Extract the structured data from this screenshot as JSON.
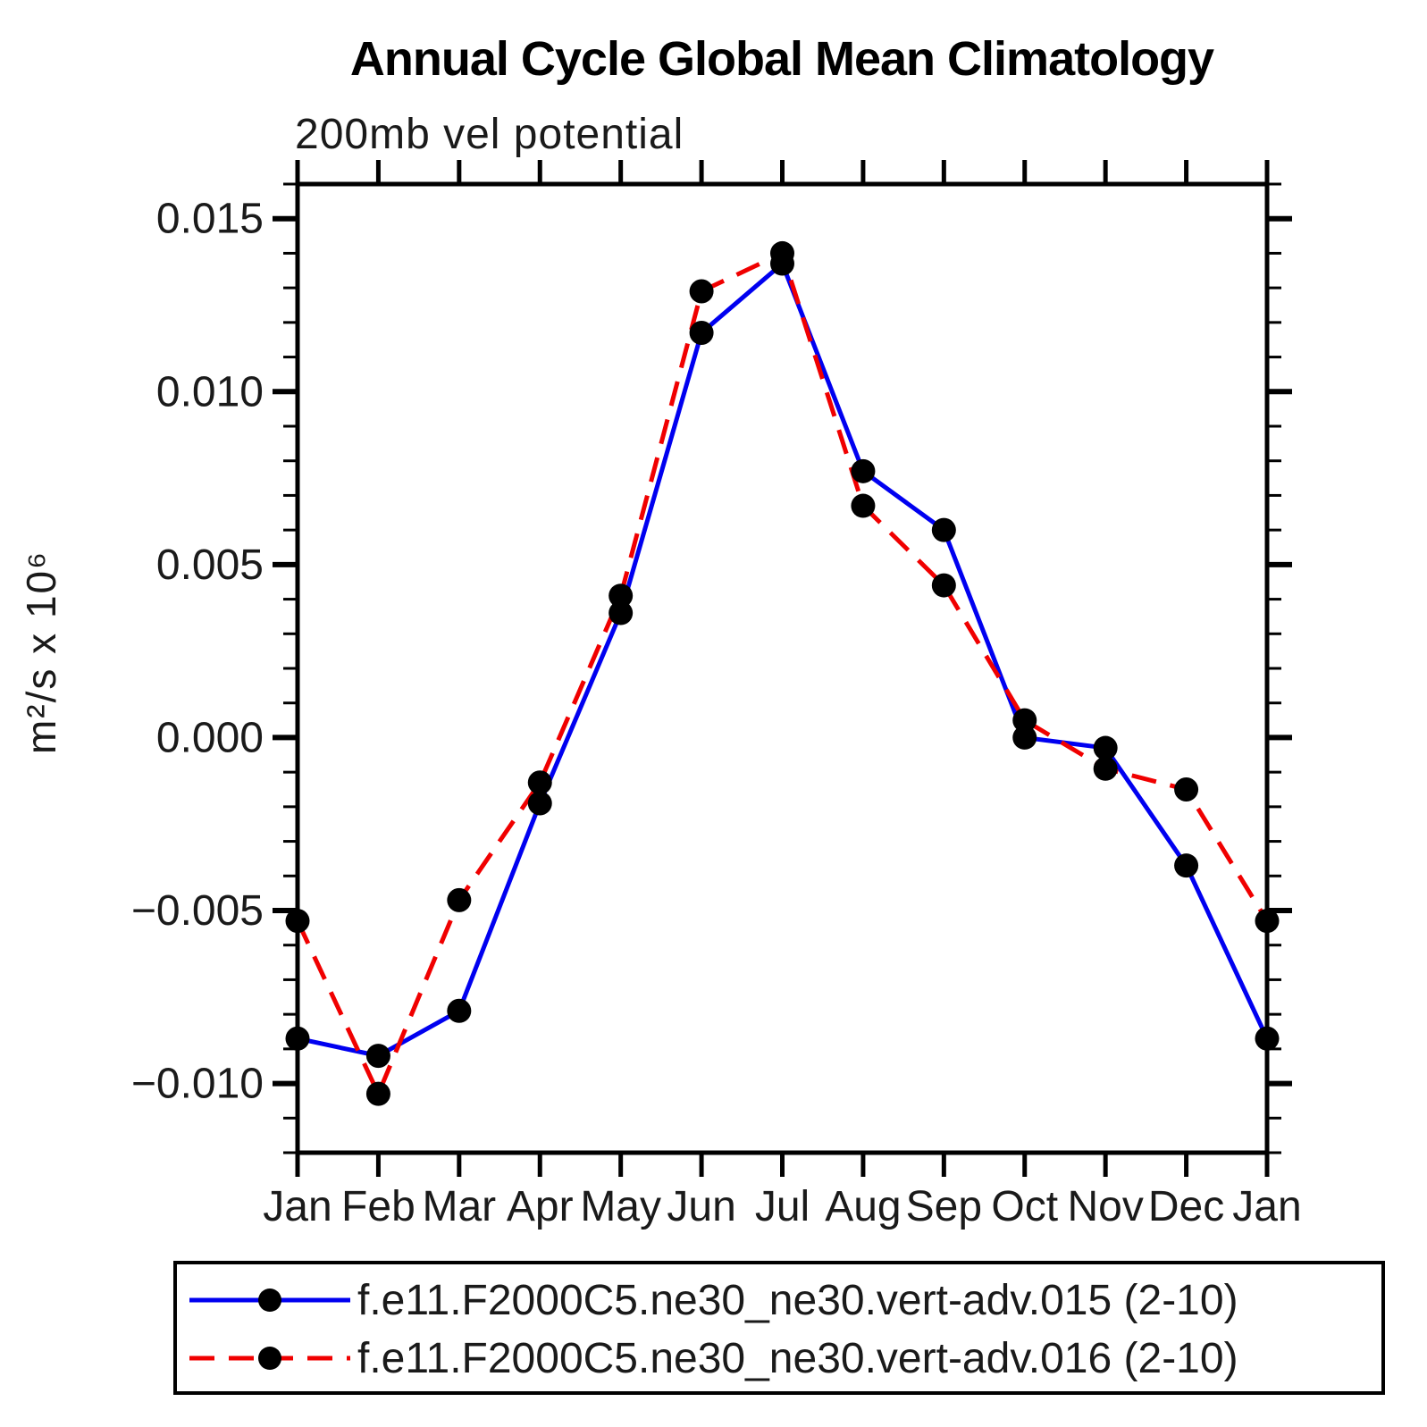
{
  "chart_data": {
    "type": "line",
    "title": "Annual Cycle Global Mean Climatology",
    "subtitle": "200mb vel potential",
    "ylabel": "m²/s x 10⁶",
    "categories": [
      "Jan",
      "Feb",
      "Mar",
      "Apr",
      "May",
      "Jun",
      "Jul",
      "Aug",
      "Sep",
      "Oct",
      "Nov",
      "Dec",
      "Jan"
    ],
    "series": [
      {
        "name": "f.e11.F2000C5.ne30_ne30.vert-adv.015 (2-10)",
        "color": "#0000f0",
        "style": "solid",
        "marker": "filled-circle",
        "values": [
          -0.0087,
          -0.0092,
          -0.0079,
          -0.0019,
          0.0036,
          0.0117,
          0.0137,
          0.0077,
          0.006,
          0.0,
          -0.0003,
          -0.0037,
          -0.0087
        ]
      },
      {
        "name": "f.e11.F2000C5.ne30_ne30.vert-adv.016 (2-10)",
        "color": "#f00000",
        "style": "dashed",
        "marker": "filled-circle",
        "values": [
          -0.0053,
          -0.0103,
          -0.0047,
          -0.0013,
          0.0041,
          0.0129,
          0.014,
          0.0067,
          0.0044,
          0.0005,
          -0.0009,
          -0.0015,
          -0.0053
        ]
      }
    ],
    "ylim": [
      -0.012,
      0.016
    ],
    "ytick_values": [
      0.015,
      0.01,
      0.005,
      0.0,
      -0.005,
      -0.01
    ],
    "ytick_labels": [
      "0.015",
      "0.010",
      "0.005",
      "0.000",
      "−0.005",
      "−0.010"
    ],
    "yminor_step": 0.001,
    "xlabel": "",
    "grid": false,
    "legend_position": "bottom",
    "marker_color": "#000000",
    "axis_color": "#000000"
  }
}
